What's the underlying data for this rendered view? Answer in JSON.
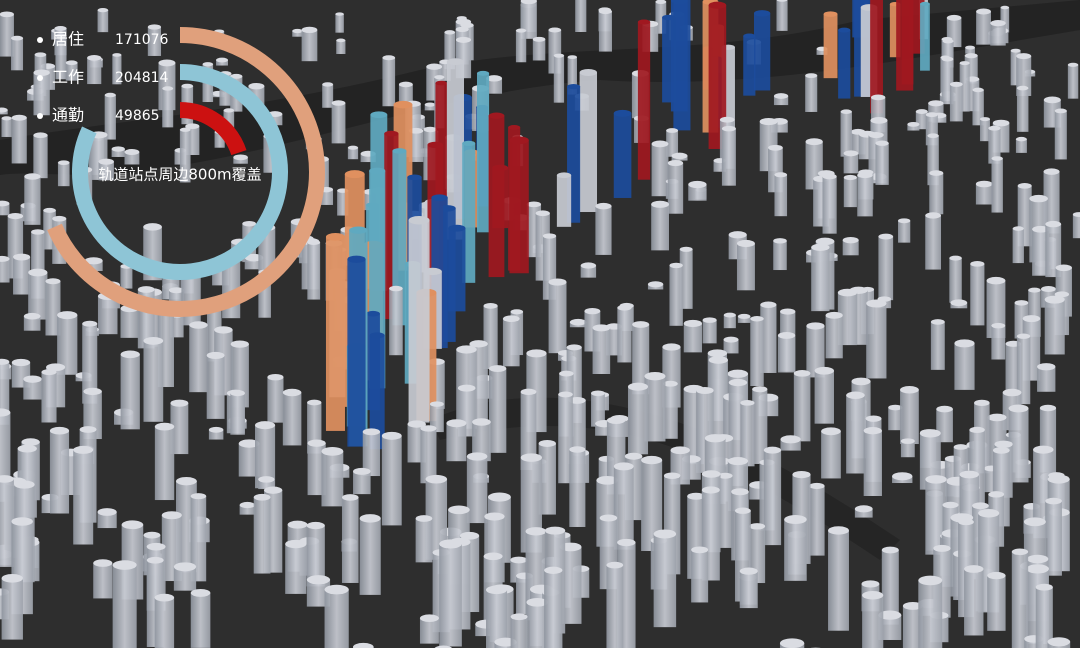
{
  "chart_data": {
    "type": "radial-bar",
    "center_label": "轨道站点周边800m覆盖",
    "rlim": [
      0,
      250000
    ],
    "series": [
      {
        "name": "居住",
        "color": "#e0a07c",
        "values": [
          171076
        ]
      },
      {
        "name": "工作",
        "color": "#8ec5d6",
        "values": [
          204814
        ]
      },
      {
        "name": "通勤",
        "color": "#cc1111",
        "values": [
          49865
        ]
      }
    ]
  }
}
